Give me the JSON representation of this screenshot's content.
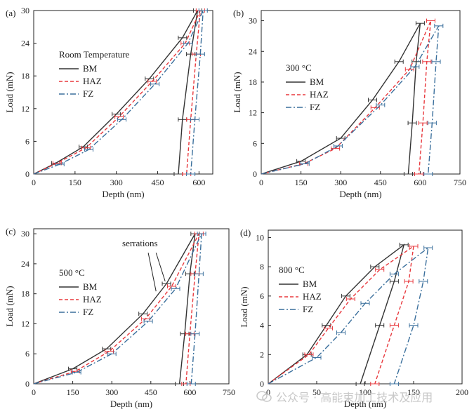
{
  "watermark": {
    "text": "公众号 · 高能束加工技术及应用"
  },
  "styles": {
    "BM": {
      "color": "#333333",
      "dash": ""
    },
    "HAZ": {
      "color": "#e8383d",
      "dash": "5,3"
    },
    "FZ": {
      "color": "#3a6f9c",
      "dash": "8,3,2,3"
    }
  },
  "chart_data": [
    {
      "type": "line",
      "panel_label": "(a)",
      "title": "Room Temperature",
      "xlabel": "Depth (nm)",
      "ylabel": "Load (mN)",
      "xlim": [
        0,
        650
      ],
      "ylim": [
        0,
        30
      ],
      "xticks": [
        0,
        150,
        300,
        450,
        600
      ],
      "yticks": [
        0,
        6,
        12,
        18,
        24,
        30
      ],
      "legend_position": "upper-left",
      "series": [
        {
          "name": "BM",
          "x": [
            0,
            80,
            180,
            300,
            420,
            540,
            595,
            570,
            540,
            525
          ],
          "y": [
            0,
            2,
            5,
            11,
            17.5,
            25,
            30,
            22,
            10,
            0
          ]
        },
        {
          "name": "HAZ",
          "x": [
            0,
            85,
            190,
            310,
            430,
            550,
            605,
            590,
            570,
            555
          ],
          "y": [
            0,
            2,
            4.8,
            10.5,
            17,
            24,
            30,
            22,
            10,
            0
          ]
        },
        {
          "name": "FZ",
          "x": [
            0,
            95,
            200,
            320,
            440,
            560,
            615,
            605,
            585,
            570
          ],
          "y": [
            0,
            1.8,
            4.5,
            10,
            16.5,
            24,
            30,
            22,
            10,
            0
          ]
        }
      ]
    },
    {
      "type": "line",
      "panel_label": "(b)",
      "title": "300 °C",
      "xlabel": "Depth (nm)",
      "ylabel": "Load (mN)",
      "xlim": [
        0,
        750
      ],
      "ylim": [
        0,
        32
      ],
      "xticks": [
        0,
        150,
        300,
        450,
        600,
        750
      ],
      "yticks": [
        0,
        6,
        12,
        18,
        24,
        30
      ],
      "legend_position": "middle-left",
      "series": [
        {
          "name": "BM",
          "x": [
            0,
            150,
            300,
            420,
            520,
            600,
            585,
            570,
            555
          ],
          "y": [
            0,
            2.5,
            7,
            14.5,
            22,
            29.5,
            22,
            10,
            0
          ]
        },
        {
          "name": "HAZ",
          "x": [
            0,
            160,
            280,
            430,
            560,
            640,
            625,
            610,
            595
          ],
          "y": [
            0,
            2,
            5,
            13,
            20.5,
            30,
            22,
            10,
            0
          ]
        },
        {
          "name": "FZ",
          "x": [
            0,
            165,
            290,
            450,
            580,
            670,
            660,
            645,
            630
          ],
          "y": [
            0,
            2,
            5.5,
            13.5,
            21,
            29,
            22,
            10,
            0
          ]
        }
      ]
    },
    {
      "type": "line",
      "panel_label": "(c)",
      "title": "500 °C",
      "xlabel": "Depth (nm)",
      "ylabel": "Load (mN)",
      "xlim": [
        0,
        750
      ],
      "ylim": [
        0,
        31
      ],
      "xticks": [
        0,
        150,
        300,
        450,
        600,
        750
      ],
      "yticks": [
        0,
        6,
        12,
        18,
        24,
        30
      ],
      "legend_position": "middle-left",
      "annotation": "serrations",
      "series": [
        {
          "name": "BM",
          "x": [
            0,
            150,
            280,
            420,
            510,
            620,
            600,
            580,
            560
          ],
          "y": [
            0,
            3,
            7,
            14,
            20,
            30,
            22,
            10,
            0
          ]
        },
        {
          "name": "HAZ",
          "x": [
            0,
            160,
            290,
            430,
            530,
            635,
            620,
            600,
            585
          ],
          "y": [
            0,
            2.5,
            6.5,
            13,
            19.5,
            30,
            22,
            10,
            0
          ]
        },
        {
          "name": "FZ",
          "x": [
            0,
            165,
            300,
            440,
            545,
            645,
            635,
            620,
            605
          ],
          "y": [
            0,
            2.3,
            6,
            12.5,
            19,
            30,
            22,
            10,
            0
          ]
        }
      ]
    },
    {
      "type": "line",
      "panel_label": "(d)",
      "title": "800 °C",
      "xlabel": "Depth (nm)",
      "ylabel": "Load (mN)",
      "xlim": [
        0,
        200
      ],
      "ylim": [
        0,
        10.5
      ],
      "xticks": [
        0,
        50,
        100,
        150,
        200
      ],
      "yticks": [
        0,
        2,
        4,
        6,
        8,
        10
      ],
      "legend_position": "middle-left",
      "series": [
        {
          "name": "BM",
          "x": [
            0,
            40,
            60,
            80,
            110,
            140,
            130,
            115,
            95
          ],
          "y": [
            0,
            2,
            4,
            6,
            8,
            9.5,
            7,
            4,
            0
          ]
        },
        {
          "name": "HAZ",
          "x": [
            0,
            42,
            62,
            85,
            115,
            150,
            145,
            130,
            110
          ],
          "y": [
            0,
            2,
            3.8,
            5.8,
            7.8,
            9.4,
            7,
            4,
            0
          ]
        },
        {
          "name": "FZ",
          "x": [
            0,
            50,
            75,
            100,
            130,
            165,
            160,
            150,
            130
          ],
          "y": [
            0,
            1.8,
            3.5,
            5.5,
            7.5,
            9.3,
            7,
            4,
            0
          ]
        }
      ]
    }
  ]
}
